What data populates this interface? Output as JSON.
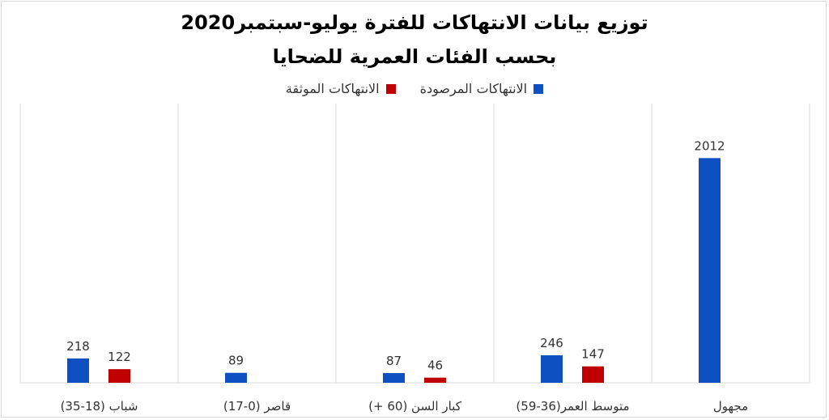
{
  "chart_data": {
    "type": "bar",
    "title": "توزيع بيانات الانتهاكات للفترة يوليو-سبتمبر2020",
    "subtitle": "بحسب الفئات العمرية للضحايا",
    "categories": [
      "شباب (18-35)",
      "قاصر (0-17)",
      "كبار السن (60 +)",
      "متوسط العمر(36-59)",
      "مجهول"
    ],
    "series": [
      {
        "name": "الانتهاكات المرصودة",
        "color": "#0e4fc1",
        "values": [
          218,
          89,
          87,
          246,
          2012
        ]
      },
      {
        "name": "الانتهاكات الموثقة",
        "color": "#c00000",
        "values": [
          122,
          null,
          46,
          147,
          null
        ]
      }
    ],
    "xlabel": "",
    "ylabel": "",
    "ylim": [
      0,
      2500
    ],
    "grid": false,
    "legend": "top"
  }
}
